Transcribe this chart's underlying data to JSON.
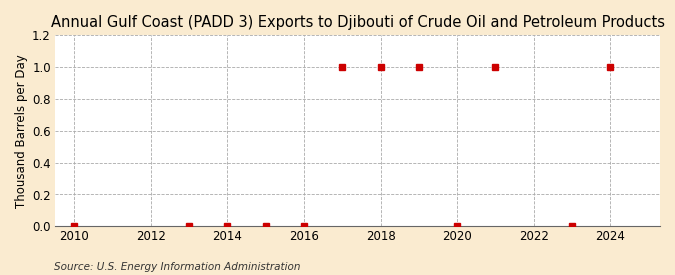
{
  "title": "Annual Gulf Coast (PADD 3) Exports to Djibouti of Crude Oil and Petroleum Products",
  "ylabel": "Thousand Barrels per Day",
  "source": "Source: U.S. Energy Information Administration",
  "background_color": "#faebd0",
  "plot_bg_color": "#ffffff",
  "xlim": [
    2009.5,
    2025.3
  ],
  "ylim": [
    0.0,
    1.2
  ],
  "yticks": [
    0.0,
    0.2,
    0.4,
    0.6,
    0.8,
    1.0,
    1.2
  ],
  "xticks": [
    2010,
    2012,
    2014,
    2016,
    2018,
    2020,
    2022,
    2024
  ],
  "data_x": [
    2010,
    2013,
    2014,
    2015,
    2016,
    2017,
    2018,
    2019,
    2020,
    2021,
    2023,
    2024
  ],
  "data_y": [
    0.0,
    0.0,
    0.0,
    0.0,
    0.0,
    1.0,
    1.0,
    1.0,
    0.0,
    1.0,
    0.0,
    1.0
  ],
  "marker_color": "#cc0000",
  "marker_size": 4,
  "grid_color": "#aaaaaa",
  "title_fontsize": 10.5,
  "label_fontsize": 8.5,
  "tick_fontsize": 8.5,
  "source_fontsize": 7.5
}
